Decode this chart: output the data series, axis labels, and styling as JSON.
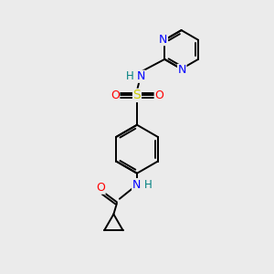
{
  "bg_color": "#ebebeb",
  "atom_colors": {
    "C": "#000000",
    "N": "#0000ff",
    "O": "#ff0000",
    "S": "#cccc00",
    "H": "#008080"
  },
  "bond_color": "#000000",
  "figsize": [
    3.0,
    3.0
  ],
  "dpi": 100
}
